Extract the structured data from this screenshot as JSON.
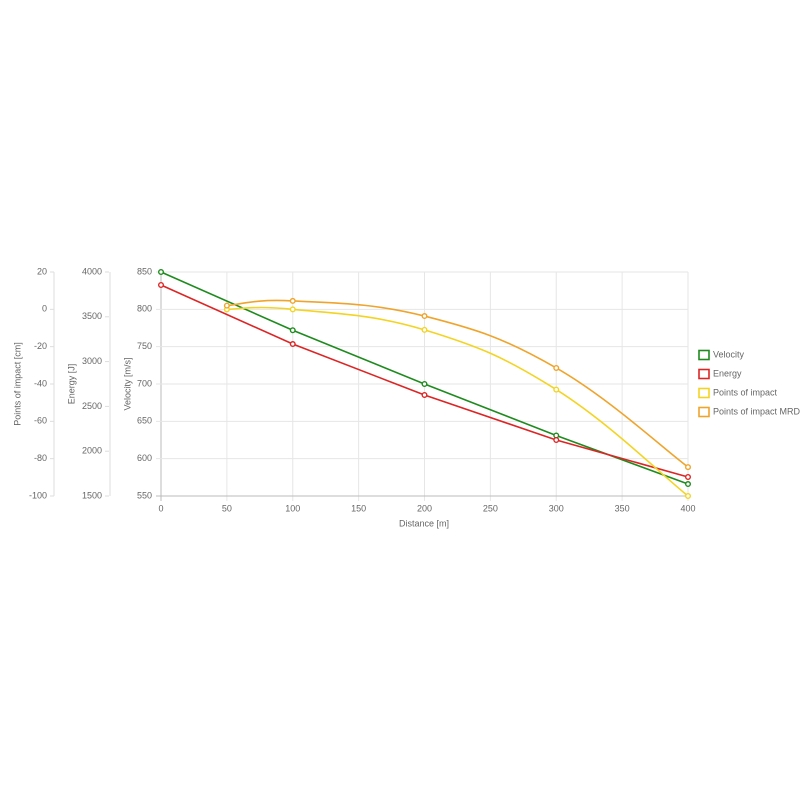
{
  "chart_data": {
    "type": "line",
    "x_label": "Distance [m]",
    "y_label": "Velocity [m/s]",
    "y2_label": "Energy [J]",
    "y3_label": "Points of impact [cm]",
    "xlim": [
      0,
      400
    ],
    "xticks": [
      0,
      50,
      100,
      150,
      200,
      250,
      300,
      350,
      400
    ],
    "ylim": [
      550,
      850
    ],
    "yticks": [
      550,
      600,
      650,
      700,
      750,
      800,
      850
    ],
    "y2lim": [
      1500,
      4000
    ],
    "y2ticks": [
      1500,
      2000,
      2500,
      3000,
      3500,
      4000
    ],
    "y3lim": [
      -100,
      20
    ],
    "y3ticks": [
      -100,
      -80,
      -60,
      -40,
      -20,
      0,
      20
    ],
    "grid": true,
    "legend": "right",
    "series": [
      {
        "name": "Velocity",
        "color": "#1f8b1f",
        "axis": "y",
        "smooth": false,
        "x": [
          0,
          100,
          200,
          300,
          400
        ],
        "values": [
          850,
          772,
          700,
          631,
          566
        ]
      },
      {
        "name": "Energy",
        "color": "#dc2626",
        "axis": "y2",
        "smooth": false,
        "x": [
          0,
          100,
          200,
          300,
          400
        ],
        "values": [
          3855,
          3196,
          2627,
          2125,
          1712
        ]
      },
      {
        "name": "Points of impact",
        "color": "#f3d423",
        "axis": "y3",
        "smooth": true,
        "x": [
          50,
          100,
          200,
          300,
          400
        ],
        "values": [
          0,
          0,
          -11,
          -43,
          -100
        ]
      },
      {
        "name": "Points of impact MRD",
        "color": "#efa42c",
        "axis": "y3",
        "smooth": true,
        "x": [
          50,
          100,
          200,
          300,
          400
        ],
        "values": [
          2,
          4.5,
          -3.6,
          -31.4,
          -84.5
        ]
      }
    ]
  }
}
